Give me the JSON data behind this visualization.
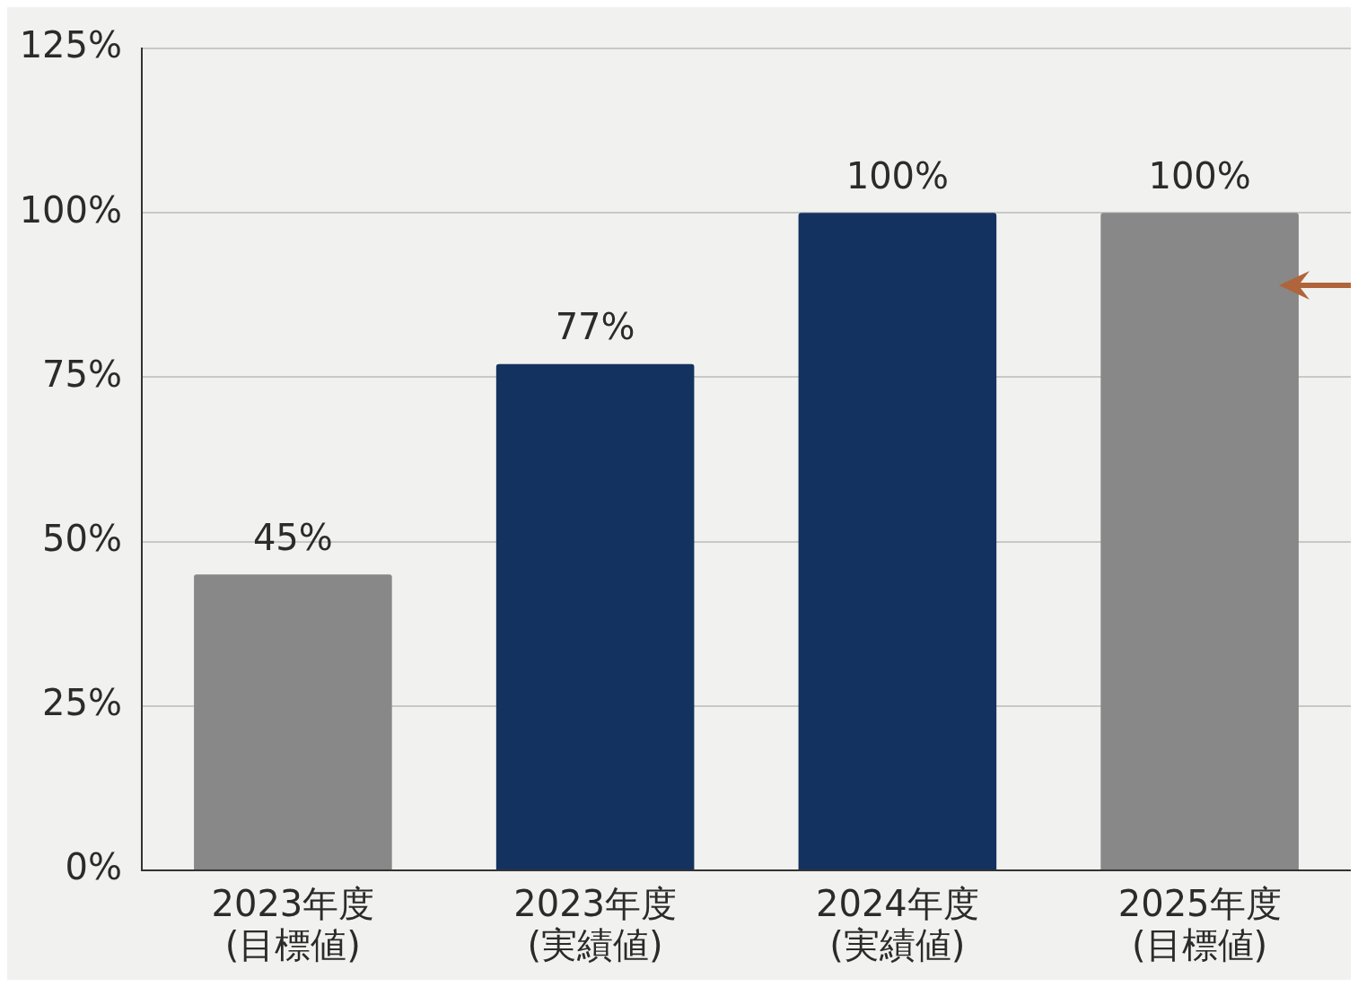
{
  "chart_data": {
    "type": "bar",
    "categories": [
      "2023年度\n(目標値)",
      "2023年度\n(実績値)",
      "2024年度\n(実績値)",
      "2025年度\n(目標値)"
    ],
    "values": [
      45,
      77,
      100,
      100
    ],
    "colors": [
      "#888888",
      "#14325f",
      "#14325f",
      "#888888"
    ],
    "value_labels": [
      "45%",
      "77%",
      "100%",
      "100%"
    ],
    "ylim": [
      0,
      125
    ],
    "yticks": [
      {
        "value": 0,
        "label": "0%"
      },
      {
        "value": 25,
        "label": "25%"
      },
      {
        "value": 50,
        "label": "50%"
      },
      {
        "value": 75,
        "label": "75%"
      },
      {
        "value": 100,
        "label": "100%"
      },
      {
        "value": 125,
        "label": "125%"
      }
    ],
    "grid": "y",
    "legend": false
  }
}
